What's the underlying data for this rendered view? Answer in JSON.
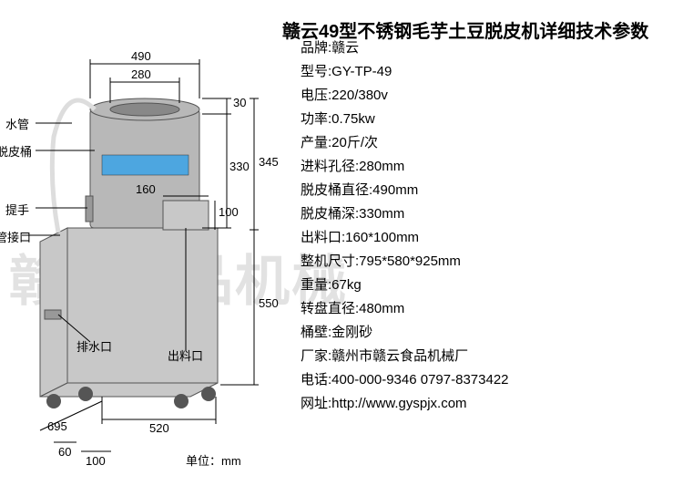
{
  "title": "赣云49型不锈钢毛芋土豆脱皮机详细技术参数",
  "watermark": "赣云食品机械",
  "diagram": {
    "unit_label": "单位：mm",
    "dims": {
      "top_outer": "490",
      "top_inner": "280",
      "rim_h": "30",
      "barrel_h": "330",
      "right_total_upper": "345",
      "chute_w": "160",
      "chute_h": "100",
      "body_h": "550",
      "depth": "695",
      "caster_gap": "60",
      "caster_gap2": "100",
      "width": "520"
    },
    "labels": {
      "water_pipe": "水管",
      "peel_barrel": "脱皮桶",
      "handle": "提手",
      "inlet": "水管接口",
      "drain": "排水口",
      "outlet": "出料口"
    }
  },
  "specs": [
    {
      "k": "品牌:",
      "v": "赣云"
    },
    {
      "k": "型号:",
      "v": "GY-TP-49"
    },
    {
      "k": "电压:",
      "v": "220/380v"
    },
    {
      "k": "功率:",
      "v": "0.75kw"
    },
    {
      "k": "产量:",
      "v": "20斤/次"
    },
    {
      "k": "进料孔径:",
      "v": "280mm"
    },
    {
      "k": "脱皮桶直径:",
      "v": "490mm"
    },
    {
      "k": "脱皮桶深:",
      "v": "330mm"
    },
    {
      "k": "出料口:",
      "v": "160*100mm"
    },
    {
      "k": "整机尺寸:",
      "v": "795*580*925mm"
    },
    {
      "k": "重量:",
      "v": "67kg"
    },
    {
      "k": "转盘直径:",
      "v": "480mm"
    },
    {
      "k": "桶壁:",
      "v": "金刚砂"
    },
    {
      "k": "厂家:",
      "v": "赣州市赣云食品机械厂"
    },
    {
      "k": "电话:",
      "v": "400-000-9346 0797-8373422"
    },
    {
      "k": "网址:",
      "v": "http://www.gyspjx.com"
    }
  ],
  "colors": {
    "machine_body": "#c8c8c8",
    "machine_top": "#b8b8b8",
    "badge": "#4da6e0",
    "text": "#000000",
    "watermark": "#cccccc",
    "bg": "#ffffff"
  }
}
